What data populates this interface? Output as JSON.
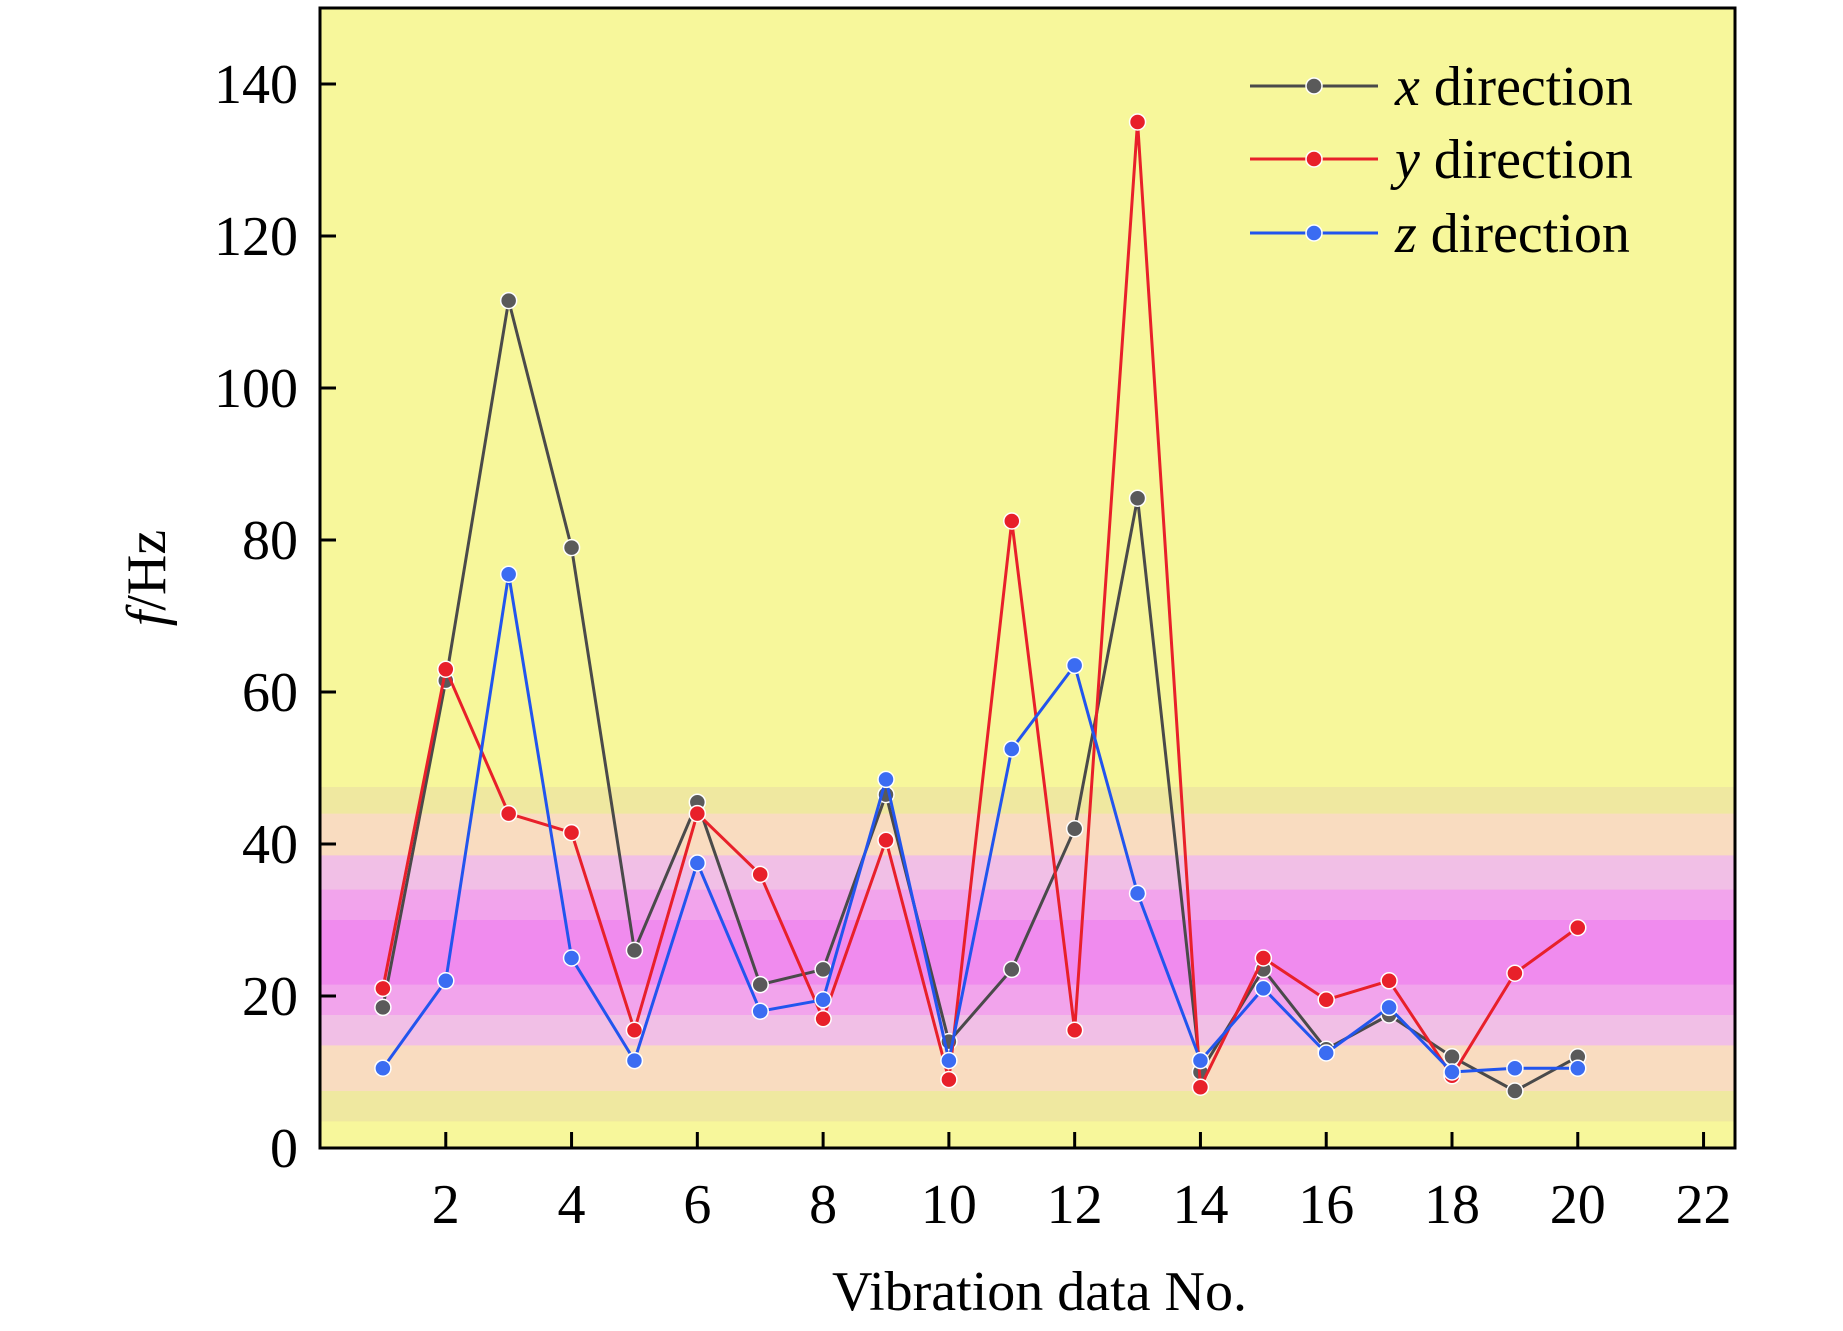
{
  "chart_data": {
    "type": "line",
    "title": "",
    "xlabel": "Vibration data No.",
    "ylabel": {
      "var": "f",
      "unit": "/Hz"
    },
    "xlim": [
      0,
      22.5
    ],
    "ylim": [
      0,
      150
    ],
    "xticks": [
      2,
      4,
      6,
      8,
      10,
      12,
      14,
      16,
      18,
      20,
      22
    ],
    "yticks": [
      0,
      20,
      40,
      60,
      80,
      100,
      120,
      140
    ],
    "grid": false,
    "legend_position": "top-right",
    "background_color": "#f7f79b",
    "background_bands": [
      {
        "from": 3.5,
        "to": 47.5,
        "color": "#efe8a0"
      },
      {
        "from": 7.5,
        "to": 44.0,
        "color": "#f9dcc0"
      },
      {
        "from": 13.5,
        "to": 38.5,
        "color": "#f1bfe6"
      },
      {
        "from": 17.5,
        "to": 34.0,
        "color": "#f2a4ec"
      },
      {
        "from": 21.5,
        "to": 30.0,
        "color": "#f08bee"
      }
    ],
    "x": [
      1,
      2,
      3,
      4,
      5,
      6,
      7,
      8,
      9,
      10,
      11,
      12,
      13,
      14,
      15,
      16,
      17,
      18,
      19,
      20
    ],
    "series": [
      {
        "name": "direction",
        "italic_prefix": "x",
        "color": "#4a4a4a",
        "marker_color": "#5a5a5a",
        "values": [
          18.5,
          61.5,
          111.5,
          79,
          26,
          45.5,
          21.5,
          23.5,
          46.5,
          14,
          23.5,
          42,
          85.5,
          10,
          23.5,
          13,
          17.5,
          12,
          7.5,
          12
        ]
      },
      {
        "name": "direction",
        "italic_prefix": "y",
        "color": "#e8202a",
        "marker_color": "#e8202a",
        "values": [
          21,
          63,
          44,
          41.5,
          15.5,
          44,
          36,
          17,
          40.5,
          9,
          82.5,
          15.5,
          135,
          8,
          25,
          19.5,
          22,
          9.5,
          23,
          29
        ]
      },
      {
        "name": "direction",
        "italic_prefix": "z",
        "color": "#2255ee",
        "marker_color": "#3b6cf2",
        "values": [
          10.5,
          22,
          75.5,
          25,
          11.5,
          37.5,
          18,
          19.5,
          48.5,
          11.5,
          52.5,
          63.5,
          33.5,
          11.5,
          21,
          12.5,
          18.5,
          10,
          10.5,
          10.5
        ]
      }
    ]
  }
}
